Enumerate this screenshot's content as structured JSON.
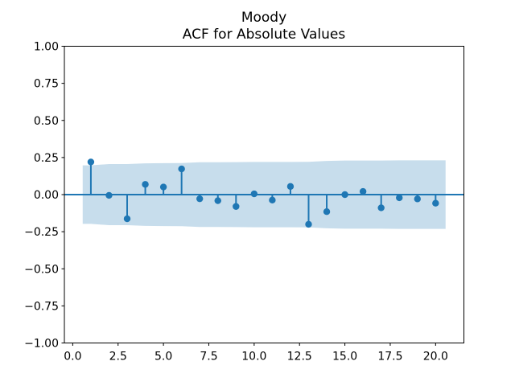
{
  "title": {
    "line1": "Moody",
    "line2": "ACF for Absolute Values"
  },
  "chart_data": {
    "type": "stem",
    "title": "Moody\nACF for Absolute Values",
    "xlabel": "",
    "ylabel": "",
    "grid": false,
    "legend": null,
    "lags": [
      1,
      2,
      3,
      4,
      5,
      6,
      7,
      8,
      9,
      10,
      11,
      12,
      13,
      14,
      15,
      16,
      17,
      18,
      19,
      20
    ],
    "acf_values": [
      0.22,
      -0.005,
      -0.163,
      0.069,
      0.051,
      0.173,
      -0.028,
      -0.041,
      -0.08,
      0.005,
      -0.037,
      0.055,
      -0.2,
      -0.115,
      0.0,
      0.021,
      -0.089,
      -0.021,
      -0.029,
      -0.058
    ],
    "confidence_band": {
      "x": [
        0.55,
        1,
        2,
        3,
        4,
        5,
        6,
        7,
        8,
        9,
        10,
        11,
        12,
        13,
        14,
        15,
        16,
        17,
        18,
        19,
        20,
        20.55
      ],
      "upper": [
        0.197,
        0.197,
        0.206,
        0.206,
        0.211,
        0.212,
        0.213,
        0.218,
        0.218,
        0.219,
        0.22,
        0.22,
        0.22,
        0.221,
        0.227,
        0.23,
        0.23,
        0.23,
        0.231,
        0.231,
        0.231,
        0.231
      ],
      "lower_is_mirror": true
    },
    "xlim": [
      -0.46,
      21.56
    ],
    "ylim": [
      -1.0,
      1.0
    ],
    "xticks": [
      0.0,
      2.5,
      5.0,
      7.5,
      10.0,
      12.5,
      15.0,
      17.5,
      20.0
    ],
    "xtick_labels": [
      "0.0",
      "2.5",
      "5.0",
      "7.5",
      "10.0",
      "12.5",
      "15.0",
      "17.5",
      "20.0"
    ],
    "yticks": [
      1.0,
      0.75,
      0.5,
      0.25,
      0.0,
      -0.25,
      -0.5,
      -0.75,
      -1.0
    ],
    "ytick_labels": [
      "1.00",
      "0.75",
      "0.50",
      "0.25",
      "0.00",
      "−0.25",
      "−0.50",
      "−0.75",
      "−1.00"
    ],
    "zero_line": 0.0,
    "colors": {
      "stem": "#1f77b4",
      "marker": "#1f77b4",
      "zero_line": "#1f77b4",
      "band": "#1f77b4",
      "band_opacity": 0.25,
      "axis": "#000000",
      "background": "#ffffff"
    }
  }
}
